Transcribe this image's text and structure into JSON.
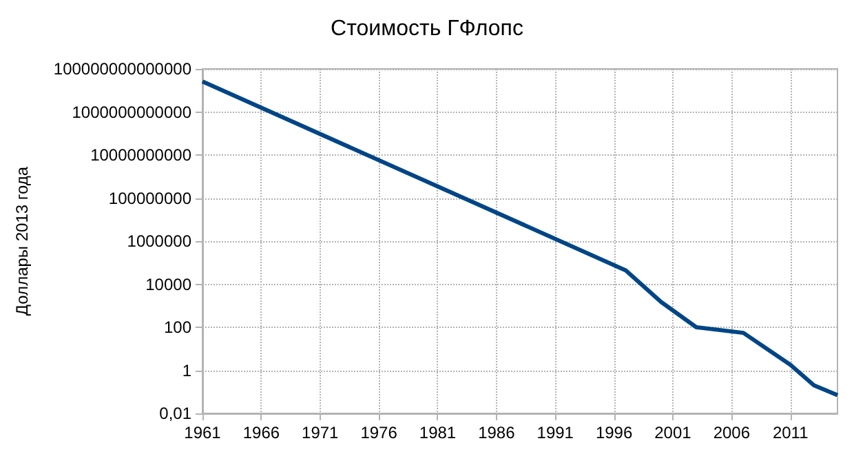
{
  "chart_data": {
    "type": "line",
    "title": "Стоимость ГФлопс",
    "ylabel": "Доллары 2013 года",
    "x": [
      1961,
      1997,
      2000,
      2003,
      2007,
      2011,
      2013,
      2015
    ],
    "series": [
      {
        "color": "#004586",
        "values": [
          26000000000000,
          44000,
          1500,
          100,
          55,
          1.8,
          0.2,
          0.07
        ]
      }
    ],
    "xlim": [
      1961,
      2015
    ],
    "xticks": [
      1961,
      1966,
      1971,
      1976,
      1981,
      1986,
      1991,
      1996,
      2001,
      2006,
      2011
    ],
    "ylim": [
      0.01,
      100000000000000
    ],
    "yticks": [
      {
        "value": 0.01,
        "label": "0,01"
      },
      1,
      100,
      10000,
      1000000,
      100000000,
      10000000000,
      1000000000000,
      100000000000000
    ],
    "log": "y",
    "grid": true,
    "marker": "none",
    "line_style": "solid"
  }
}
